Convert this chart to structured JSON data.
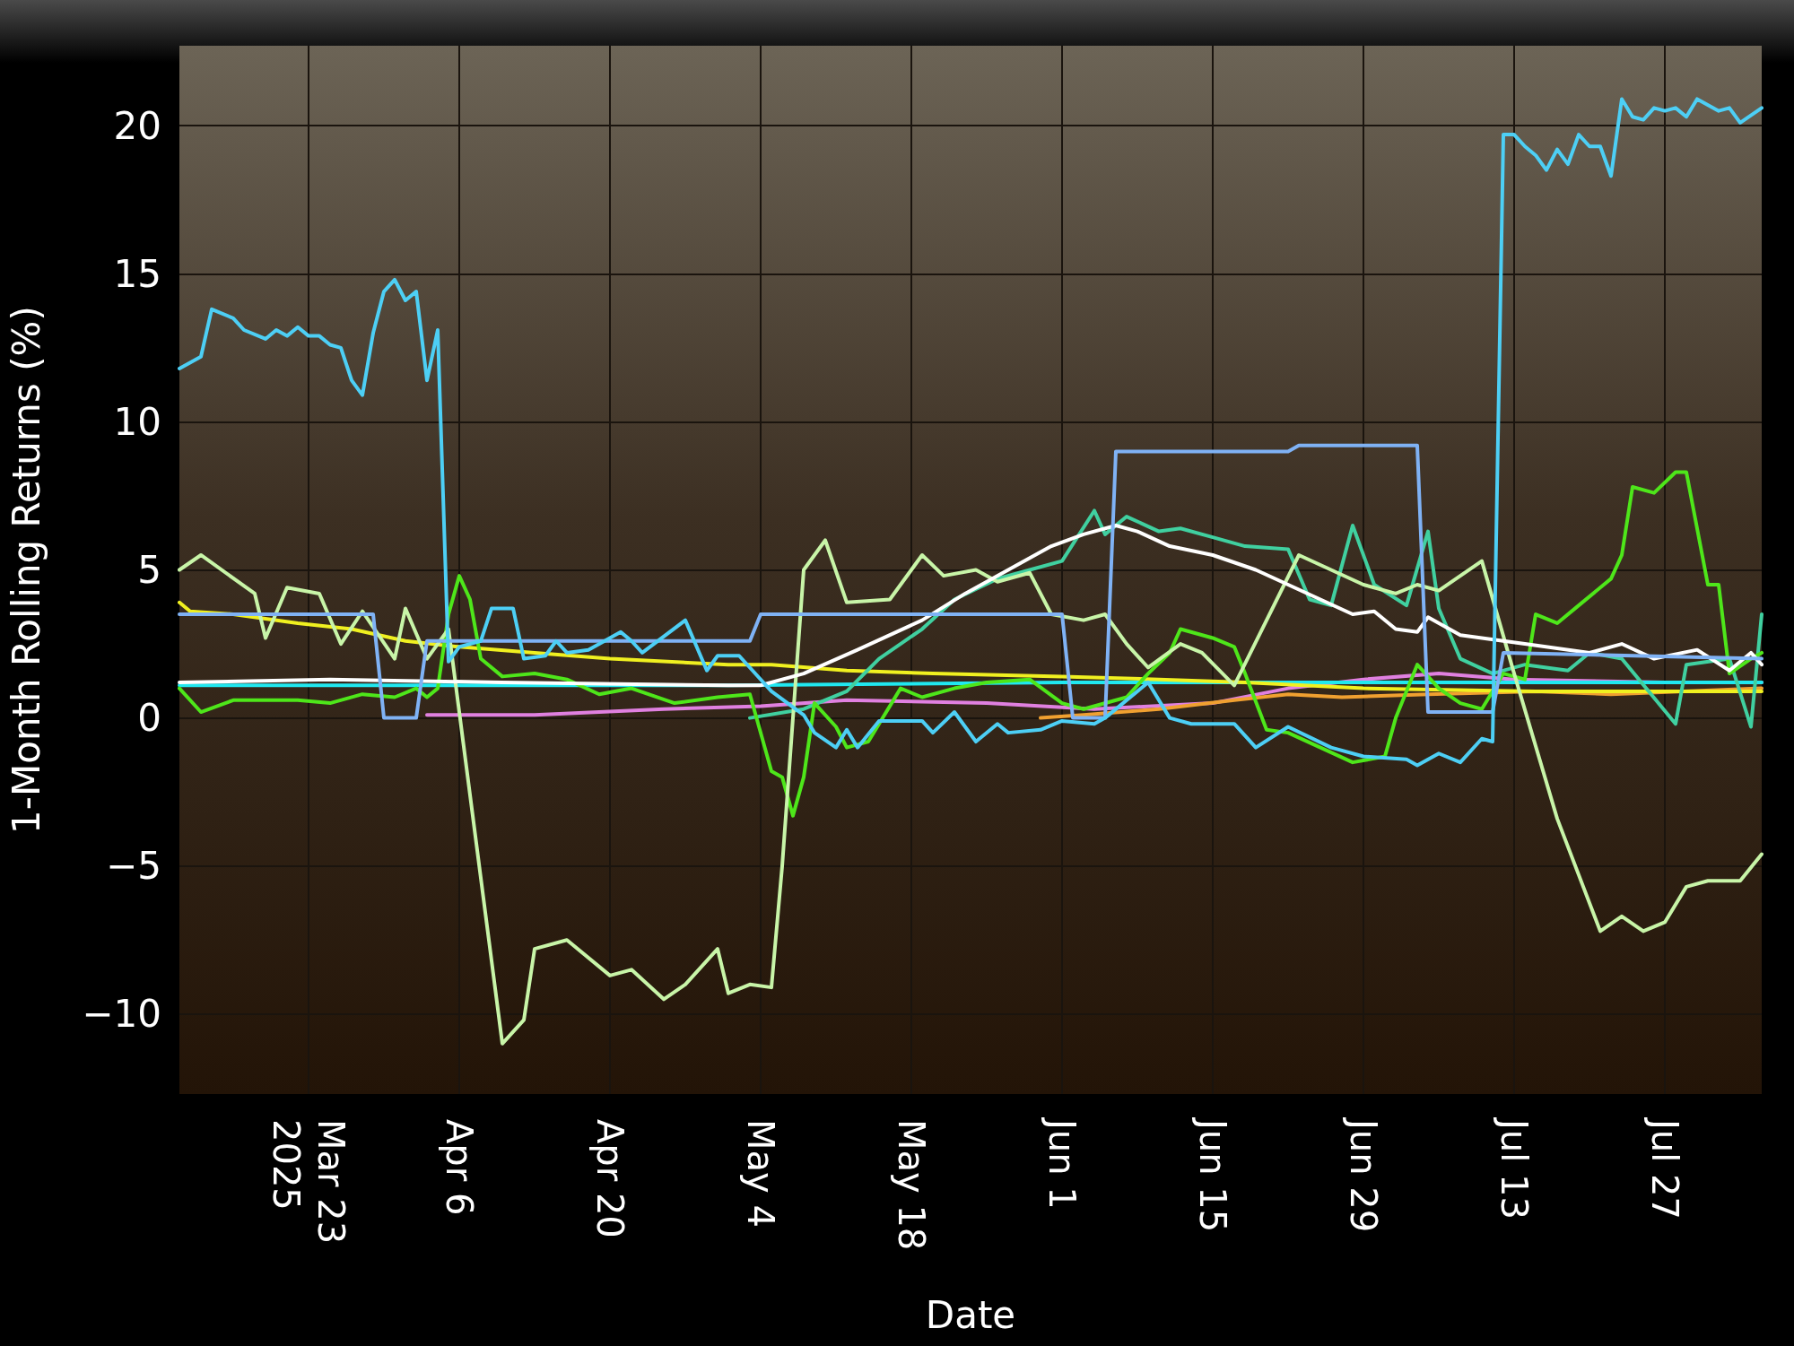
{
  "chart_data": {
    "type": "line",
    "xlabel": "Date",
    "ylabel": "1-Month Rolling Returns (%)",
    "xlim": [
      "2025-03-11",
      "2025-08-05"
    ],
    "ylim": [
      -12.7,
      22.7
    ],
    "xticks": [
      {
        "value": "2025-03-23",
        "label": "Mar 23\n2025"
      },
      {
        "value": "2025-04-06",
        "label": "Apr 6"
      },
      {
        "value": "2025-04-20",
        "label": "Apr 20"
      },
      {
        "value": "2025-05-04",
        "label": "May 4"
      },
      {
        "value": "2025-05-18",
        "label": "May 18"
      },
      {
        "value": "2025-06-01",
        "label": "Jun 1"
      },
      {
        "value": "2025-06-15",
        "label": "Jun 15"
      },
      {
        "value": "2025-06-29",
        "label": "Jun 29"
      },
      {
        "value": "2025-07-13",
        "label": "Jul 13"
      },
      {
        "value": "2025-07-27",
        "label": "Jul 27"
      }
    ],
    "yticks": [
      {
        "value": -10,
        "label": "−10"
      },
      {
        "value": -5,
        "label": "−5"
      },
      0,
      5,
      10,
      15,
      20
    ],
    "grid": true,
    "marker": "none",
    "line_style": "solid",
    "series": [
      {
        "color": "#e080e0",
        "x": [
          "2025-04-03",
          "2025-04-13",
          "2025-04-25",
          "2025-05-04",
          "2025-05-12",
          "2025-05-25",
          "2025-06-04",
          "2025-06-15",
          "2025-06-22",
          "2025-06-29",
          "2025-07-06",
          "2025-07-13",
          "2025-07-27",
          "2025-08-05"
        ],
        "values": [
          0.1,
          0.1,
          0.3,
          0.4,
          0.6,
          0.5,
          0.3,
          0.5,
          1.0,
          1.3,
          1.5,
          1.3,
          1.2,
          1.2
        ]
      },
      {
        "color": "#f0a030",
        "x": [
          "2025-05-30",
          "2025-06-03",
          "2025-06-10",
          "2025-06-17",
          "2025-06-22",
          "2025-06-27",
          "2025-07-05",
          "2025-07-15",
          "2025-07-22",
          "2025-08-05"
        ],
        "values": [
          0.0,
          0.1,
          0.3,
          0.6,
          0.8,
          0.7,
          0.8,
          0.9,
          0.8,
          1.0
        ]
      },
      {
        "color": "#20e8f0",
        "x": [
          "2025-03-11",
          "2025-05-01",
          "2025-06-01",
          "2025-07-01",
          "2025-08-05"
        ],
        "values": [
          1.1,
          1.1,
          1.2,
          1.2,
          1.2
        ]
      },
      {
        "color": "#f0f020",
        "x": [
          "2025-03-11",
          "2025-03-12",
          "2025-03-16",
          "2025-03-22",
          "2025-03-27",
          "2025-04-01",
          "2025-04-06",
          "2025-04-13",
          "2025-04-20",
          "2025-05-01",
          "2025-05-05",
          "2025-05-12",
          "2025-05-20",
          "2025-06-01",
          "2025-06-10",
          "2025-06-18",
          "2025-06-29",
          "2025-07-15",
          "2025-08-05"
        ],
        "values": [
          3.9,
          3.6,
          3.5,
          3.2,
          3.0,
          2.6,
          2.4,
          2.2,
          2.0,
          1.8,
          1.8,
          1.6,
          1.5,
          1.4,
          1.3,
          1.2,
          1.0,
          0.9,
          0.9
        ]
      },
      {
        "color": "#40d0a0",
        "x": [
          "2025-05-03",
          "2025-05-08",
          "2025-05-12",
          "2025-05-15",
          "2025-05-19",
          "2025-05-22",
          "2025-05-26",
          "2025-05-29",
          "2025-06-01",
          "2025-06-04",
          "2025-06-05",
          "2025-06-07",
          "2025-06-10",
          "2025-06-12",
          "2025-06-15",
          "2025-06-18",
          "2025-06-22",
          "2025-06-24",
          "2025-06-26",
          "2025-06-28",
          "2025-06-30",
          "2025-07-03",
          "2025-07-05",
          "2025-07-06",
          "2025-07-08",
          "2025-07-11",
          "2025-07-14",
          "2025-07-18",
          "2025-07-20",
          "2025-07-23",
          "2025-07-28",
          "2025-07-29",
          "2025-08-02",
          "2025-08-04",
          "2025-08-05"
        ],
        "values": [
          0.0,
          0.3,
          0.9,
          2.0,
          3.0,
          4.0,
          4.7,
          5.0,
          5.3,
          7.0,
          6.2,
          6.8,
          6.3,
          6.4,
          6.1,
          5.8,
          5.7,
          4.0,
          3.8,
          6.5,
          4.5,
          3.8,
          6.3,
          3.7,
          2.0,
          1.5,
          1.8,
          1.6,
          2.2,
          2.0,
          -0.2,
          1.8,
          2.0,
          -0.3,
          3.5
        ]
      },
      {
        "color": "#4ee61a",
        "x": [
          "2025-03-11",
          "2025-03-13",
          "2025-03-16",
          "2025-03-22",
          "2025-03-25",
          "2025-03-28",
          "2025-03-31",
          "2025-04-02",
          "2025-04-03",
          "2025-04-04",
          "2025-04-05",
          "2025-04-06",
          "2025-04-07",
          "2025-04-08",
          "2025-04-10",
          "2025-04-13",
          "2025-04-16",
          "2025-04-19",
          "2025-04-22",
          "2025-04-26",
          "2025-04-30",
          "2025-05-03",
          "2025-05-05",
          "2025-05-06",
          "2025-05-07",
          "2025-05-08",
          "2025-05-09",
          "2025-05-11",
          "2025-05-12",
          "2025-05-14",
          "2025-05-17",
          "2025-05-19",
          "2025-05-22",
          "2025-05-25",
          "2025-05-29",
          "2025-06-01",
          "2025-06-03",
          "2025-06-07",
          "2025-06-09",
          "2025-06-11",
          "2025-06-12",
          "2025-06-15",
          "2025-06-17",
          "2025-06-18",
          "2025-06-20",
          "2025-06-22",
          "2025-06-25",
          "2025-06-28",
          "2025-07-01",
          "2025-07-02",
          "2025-07-04",
          "2025-07-06",
          "2025-07-08",
          "2025-07-10",
          "2025-07-12",
          "2025-07-14",
          "2025-07-15",
          "2025-07-17",
          "2025-07-19",
          "2025-07-21",
          "2025-07-22",
          "2025-07-23",
          "2025-07-24",
          "2025-07-26",
          "2025-07-28",
          "2025-07-29",
          "2025-07-31",
          "2025-08-01",
          "2025-08-02",
          "2025-08-04",
          "2025-08-05"
        ],
        "values": [
          1.0,
          0.2,
          0.6,
          0.6,
          0.5,
          0.8,
          0.7,
          1.0,
          0.7,
          1.0,
          3.5,
          4.8,
          4.0,
          2.0,
          1.4,
          1.5,
          1.3,
          0.8,
          1.0,
          0.5,
          0.7,
          0.8,
          -1.8,
          -2.0,
          -3.3,
          -2.0,
          0.5,
          -0.3,
          -1.0,
          -0.8,
          1.0,
          0.7,
          1.0,
          1.2,
          1.3,
          0.5,
          0.3,
          0.7,
          1.5,
          2.2,
          3.0,
          2.7,
          2.4,
          1.5,
          -0.4,
          -0.5,
          -1.0,
          -1.5,
          -1.3,
          0.0,
          1.8,
          1.0,
          0.5,
          0.3,
          1.5,
          1.3,
          3.5,
          3.2,
          3.8,
          4.4,
          4.7,
          5.5,
          7.8,
          7.6,
          8.3,
          8.3,
          4.5,
          4.5,
          1.5,
          2.0,
          2.2
        ]
      },
      {
        "color": "#c8f5a8",
        "x": [
          "2025-03-11",
          "2025-03-13",
          "2025-03-18",
          "2025-03-19",
          "2025-03-21",
          "2025-03-24",
          "2025-03-26",
          "2025-03-28",
          "2025-03-31",
          "2025-04-01",
          "2025-04-03",
          "2025-04-05",
          "2025-04-10",
          "2025-04-12",
          "2025-04-13",
          "2025-04-16",
          "2025-04-20",
          "2025-04-22",
          "2025-04-25",
          "2025-04-27",
          "2025-04-30",
          "2025-05-01",
          "2025-05-03",
          "2025-05-05",
          "2025-05-06",
          "2025-05-08",
          "2025-05-10",
          "2025-05-12",
          "2025-05-16",
          "2025-05-19",
          "2025-05-21",
          "2025-05-24",
          "2025-05-26",
          "2025-05-29",
          "2025-05-31",
          "2025-06-03",
          "2025-06-05",
          "2025-06-07",
          "2025-06-09",
          "2025-06-12",
          "2025-06-14",
          "2025-06-17",
          "2025-06-23",
          "2025-06-26",
          "2025-06-29",
          "2025-07-02",
          "2025-07-04",
          "2025-07-06",
          "2025-07-10",
          "2025-07-13",
          "2025-07-17",
          "2025-07-19",
          "2025-07-21",
          "2025-07-23",
          "2025-07-25",
          "2025-07-27",
          "2025-07-29",
          "2025-07-31",
          "2025-08-03",
          "2025-08-05"
        ],
        "values": [
          5.0,
          5.5,
          4.2,
          2.7,
          4.4,
          4.2,
          2.5,
          3.6,
          2.0,
          3.7,
          2.0,
          3.0,
          -11.0,
          -10.2,
          -7.8,
          -7.5,
          -8.7,
          -8.5,
          -9.5,
          -9.0,
          -7.8,
          -9.3,
          -9.0,
          -9.1,
          -5.0,
          5.0,
          6.0,
          3.9,
          4.0,
          5.5,
          4.8,
          5.0,
          4.6,
          4.9,
          3.5,
          3.3,
          3.5,
          2.5,
          1.7,
          2.5,
          2.2,
          1.1,
          5.5,
          5.0,
          4.5,
          4.2,
          4.5,
          4.3,
          5.3,
          1.5,
          -3.4,
          -5.3,
          -7.2,
          -6.7,
          -7.2,
          -6.9,
          -5.7,
          -5.5,
          -5.5,
          -4.6
        ]
      },
      {
        "color": "#ffffff",
        "x": [
          "2025-03-11",
          "2025-03-25",
          "2025-04-10",
          "2025-05-01",
          "2025-05-04",
          "2025-05-08",
          "2025-05-13",
          "2025-05-19",
          "2025-05-23",
          "2025-05-27",
          "2025-05-31",
          "2025-06-03",
          "2025-06-06",
          "2025-06-08",
          "2025-06-11",
          "2025-06-15",
          "2025-06-19",
          "2025-06-22",
          "2025-06-25",
          "2025-06-28",
          "2025-06-30",
          "2025-07-02",
          "2025-07-04",
          "2025-07-05",
          "2025-07-08",
          "2025-07-14",
          "2025-07-20",
          "2025-07-23",
          "2025-07-26",
          "2025-07-30",
          "2025-08-02",
          "2025-08-04",
          "2025-08-05"
        ],
        "values": [
          1.2,
          1.3,
          1.2,
          1.1,
          1.1,
          1.5,
          2.3,
          3.3,
          4.2,
          5.0,
          5.8,
          6.2,
          6.5,
          6.3,
          5.8,
          5.5,
          5.0,
          4.5,
          4.0,
          3.5,
          3.6,
          3.0,
          2.9,
          3.4,
          2.8,
          2.5,
          2.2,
          2.5,
          2.0,
          2.3,
          1.6,
          2.2,
          1.8
        ]
      },
      {
        "color": "#7fb2f5",
        "x": [
          "2025-03-11",
          "2025-03-29",
          "2025-03-30",
          "2025-04-02",
          "2025-04-03",
          "2025-05-03",
          "2025-05-04",
          "2025-06-01",
          "2025-06-02",
          "2025-06-05",
          "2025-06-06",
          "2025-06-22",
          "2025-06-23",
          "2025-07-04",
          "2025-07-05",
          "2025-07-11",
          "2025-07-12",
          "2025-08-05"
        ],
        "values": [
          3.5,
          3.5,
          0.0,
          0.0,
          2.6,
          2.6,
          3.5,
          3.5,
          0.0,
          0.0,
          9.0,
          9.0,
          9.2,
          9.2,
          0.2,
          0.2,
          2.2,
          2.0
        ]
      },
      {
        "color": "#4dcff5",
        "x": [
          "2025-03-11",
          "2025-03-13",
          "2025-03-14",
          "2025-03-16",
          "2025-03-17",
          "2025-03-19",
          "2025-03-20",
          "2025-03-21",
          "2025-03-22",
          "2025-03-23",
          "2025-03-24",
          "2025-03-25",
          "2025-03-26",
          "2025-03-27",
          "2025-03-28",
          "2025-03-29",
          "2025-03-30",
          "2025-03-31",
          "2025-04-01",
          "2025-04-02",
          "2025-04-03",
          "2025-04-04",
          "2025-04-05",
          "2025-04-06",
          "2025-04-08",
          "2025-04-09",
          "2025-04-11",
          "2025-04-12",
          "2025-04-14",
          "2025-04-15",
          "2025-04-16",
          "2025-04-18",
          "2025-04-21",
          "2025-04-22",
          "2025-04-23",
          "2025-04-27",
          "2025-04-29",
          "2025-04-30",
          "2025-05-02",
          "2025-05-03",
          "2025-05-05",
          "2025-05-08",
          "2025-05-09",
          "2025-05-11",
          "2025-05-12",
          "2025-05-13",
          "2025-05-15",
          "2025-05-19",
          "2025-05-20",
          "2025-05-22",
          "2025-05-24",
          "2025-05-26",
          "2025-05-27",
          "2025-05-30",
          "2025-06-01",
          "2025-06-04",
          "2025-06-05",
          "2025-06-09",
          "2025-06-11",
          "2025-06-13",
          "2025-06-17",
          "2025-06-19",
          "2025-06-22",
          "2025-06-26",
          "2025-06-29",
          "2025-07-03",
          "2025-07-04",
          "2025-07-06",
          "2025-07-08",
          "2025-07-10",
          "2025-07-11",
          "2025-07-12",
          "2025-07-13",
          "2025-07-14",
          "2025-07-15",
          "2025-07-16",
          "2025-07-17",
          "2025-07-18",
          "2025-07-19",
          "2025-07-20",
          "2025-07-21",
          "2025-07-22",
          "2025-07-23",
          "2025-07-24",
          "2025-07-25",
          "2025-07-26",
          "2025-07-27",
          "2025-07-28",
          "2025-07-29",
          "2025-07-30",
          "2025-08-01",
          "2025-08-02",
          "2025-08-03",
          "2025-08-05"
        ],
        "values": [
          11.8,
          12.2,
          13.8,
          13.5,
          13.1,
          12.8,
          13.1,
          12.9,
          13.2,
          12.9,
          12.9,
          12.6,
          12.5,
          11.4,
          10.9,
          13.0,
          14.4,
          14.8,
          14.1,
          14.4,
          11.4,
          13.1,
          1.9,
          2.4,
          2.6,
          3.7,
          3.7,
          2.0,
          2.1,
          2.6,
          2.2,
          2.3,
          2.9,
          2.6,
          2.2,
          3.3,
          1.6,
          2.1,
          2.1,
          1.7,
          0.9,
          0.1,
          -0.5,
          -1.0,
          -0.4,
          -1.0,
          -0.1,
          -0.1,
          -0.5,
          0.2,
          -0.8,
          -0.2,
          -0.5,
          -0.4,
          -0.1,
          -0.2,
          0.0,
          1.2,
          0.0,
          -0.2,
          -0.2,
          -1.0,
          -0.3,
          -1.0,
          -1.3,
          -1.4,
          -1.6,
          -1.2,
          -1.5,
          -0.7,
          -0.8,
          19.7,
          19.7,
          19.3,
          19.0,
          18.5,
          19.2,
          18.7,
          19.7,
          19.3,
          19.3,
          18.3,
          20.9,
          20.3,
          20.2,
          20.6,
          20.5,
          20.6,
          20.3,
          20.9,
          20.5,
          20.6,
          20.1,
          20.6
        ]
      }
    ]
  }
}
